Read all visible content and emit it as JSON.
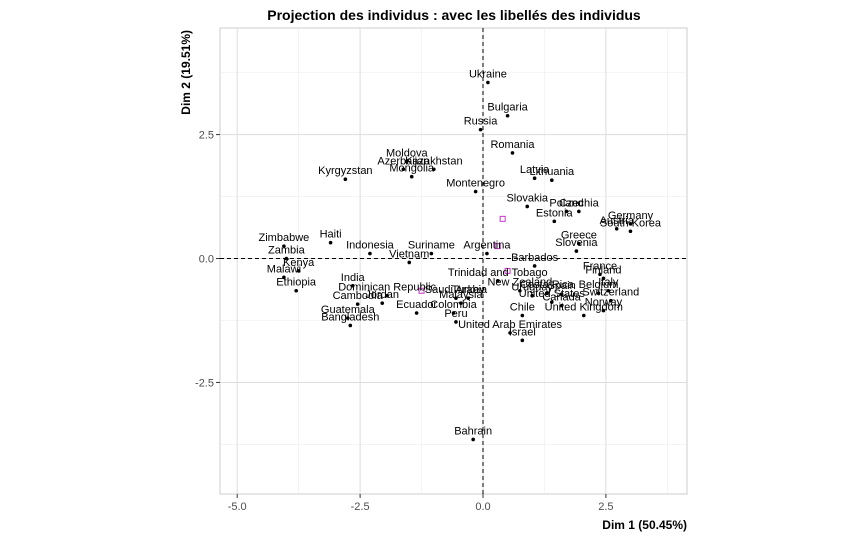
{
  "chart_data": {
    "type": "scatter",
    "title": "Projection des individus : avec les libellés des individus",
    "xlabel": "Dim 1 (50.45%)",
    "ylabel": "Dim 2 (19.51%)",
    "xlim": [
      -5.35,
      4.15
    ],
    "ylim": [
      -4.75,
      4.65
    ],
    "x_ticks": [
      -5,
      -2.5,
      0,
      2.5
    ],
    "y_ticks": [
      -2.5,
      0,
      2.5
    ],
    "x_tick_labels": [
      "-5.0",
      "-2.5",
      "0.0",
      "2.5"
    ],
    "y_tick_labels": [
      "-2.5",
      "0.0",
      "2.5"
    ],
    "grid": true,
    "reference_lines": {
      "x": 0,
      "y": 0
    },
    "point_color": "#000000",
    "supplementary_color": "#cc33cc",
    "points": [
      {
        "label": "Ukraine",
        "x": 0.1,
        "y": 3.55
      },
      {
        "label": "Bulgaria",
        "x": 0.5,
        "y": 2.88
      },
      {
        "label": "Russia",
        "x": -0.05,
        "y": 2.6
      },
      {
        "label": "Romania",
        "x": 0.6,
        "y": 2.13
      },
      {
        "label": "Moldova",
        "x": -1.55,
        "y": 1.96
      },
      {
        "label": "Kazakhstan",
        "x": -1.0,
        "y": 1.8
      },
      {
        "label": "Azerbaijan",
        "x": -1.62,
        "y": 1.8
      },
      {
        "label": "Mongolia",
        "x": -1.45,
        "y": 1.65
      },
      {
        "label": "Kyrgyzstan",
        "x": -2.8,
        "y": 1.6
      },
      {
        "label": "Latvia",
        "x": 1.05,
        "y": 1.62
      },
      {
        "label": "Lithuania",
        "x": 1.4,
        "y": 1.58
      },
      {
        "label": "Montenegro",
        "x": -0.15,
        "y": 1.35
      },
      {
        "label": "Slovakia",
        "x": 0.9,
        "y": 1.05
      },
      {
        "label": "Poland",
        "x": 1.7,
        "y": 0.95
      },
      {
        "label": "Czechia",
        "x": 1.95,
        "y": 0.95
      },
      {
        "label": "Estonia",
        "x": 1.45,
        "y": 0.75
      },
      {
        "label": "Germany",
        "x": 3.0,
        "y": 0.7
      },
      {
        "label": "Austria",
        "x": 2.72,
        "y": 0.6
      },
      {
        "label": "South Korea",
        "x": 3.0,
        "y": 0.55
      },
      {
        "label": "Greece",
        "x": 1.95,
        "y": 0.3
      },
      {
        "label": "Slovenia",
        "x": 1.9,
        "y": 0.15
      },
      {
        "label": "Zimbabwe",
        "x": -4.05,
        "y": 0.25
      },
      {
        "label": "Haiti",
        "x": -3.1,
        "y": 0.32
      },
      {
        "label": "Indonesia",
        "x": -2.3,
        "y": 0.1
      },
      {
        "label": "Suriname",
        "x": -1.05,
        "y": 0.1
      },
      {
        "label": "Argentina",
        "x": 0.08,
        "y": 0.1
      },
      {
        "label": "Zambia",
        "x": -4.0,
        "y": 0.0
      },
      {
        "label": "Vietnam",
        "x": -1.5,
        "y": -0.08
      },
      {
        "label": "Kenya",
        "x": -3.75,
        "y": -0.25
      },
      {
        "label": "Malawi",
        "x": -4.05,
        "y": -0.38
      },
      {
        "label": "Ethiopia",
        "x": -3.8,
        "y": -0.65
      },
      {
        "label": "Barbados",
        "x": 1.05,
        "y": -0.15
      },
      {
        "label": "France",
        "x": 2.38,
        "y": -0.32
      },
      {
        "label": "Finland",
        "x": 2.45,
        "y": -0.4
      },
      {
        "label": "Trinidad and Tobago",
        "x": 0.3,
        "y": -0.45
      },
      {
        "label": "New Zealand",
        "x": 0.75,
        "y": -0.65
      },
      {
        "label": "Uruguay",
        "x": 1.0,
        "y": -0.75
      },
      {
        "label": "Costa Rica",
        "x": 1.3,
        "y": -0.7
      },
      {
        "label": "Spain",
        "x": 1.6,
        "y": -0.72
      },
      {
        "label": "Belgium",
        "x": 2.35,
        "y": -0.7
      },
      {
        "label": "Italy",
        "x": 2.55,
        "y": -0.65
      },
      {
        "label": "United States",
        "x": 1.4,
        "y": -0.88
      },
      {
        "label": "Switzerland",
        "x": 2.6,
        "y": -0.85
      },
      {
        "label": "Canada",
        "x": 1.6,
        "y": -0.95
      },
      {
        "label": "Norway",
        "x": 2.45,
        "y": -1.05
      },
      {
        "label": "United Kingdom",
        "x": 2.05,
        "y": -1.15
      },
      {
        "label": "India",
        "x": -2.65,
        "y": -0.55
      },
      {
        "label": "Dominican Republic",
        "x": -1.95,
        "y": -0.75
      },
      {
        "label": "Jordan",
        "x": -2.05,
        "y": -0.9
      },
      {
        "label": "Cambodia",
        "x": -2.55,
        "y": -0.92
      },
      {
        "label": "Saudi Arabia",
        "x": -0.55,
        "y": -0.8
      },
      {
        "label": "Turkey",
        "x": -0.3,
        "y": -0.8
      },
      {
        "label": "Malaysia",
        "x": -0.45,
        "y": -0.9
      },
      {
        "label": "Ecuador",
        "x": -1.35,
        "y": -1.1
      },
      {
        "label": "Colombia",
        "x": -0.6,
        "y": -1.1
      },
      {
        "label": "Guatemala",
        "x": -2.75,
        "y": -1.2
      },
      {
        "label": "Bangladesh",
        "x": -2.7,
        "y": -1.35
      },
      {
        "label": "Peru",
        "x": -0.55,
        "y": -1.28
      },
      {
        "label": "Chile",
        "x": 0.8,
        "y": -1.15
      },
      {
        "label": "United Arab Emirates",
        "x": 0.55,
        "y": -1.5
      },
      {
        "label": "Israel",
        "x": 0.8,
        "y": -1.65
      },
      {
        "label": "Bahrain",
        "x": -0.2,
        "y": -3.65
      }
    ],
    "supplementary_points": [
      {
        "x": 0.4,
        "y": 0.8
      },
      {
        "x": 0.3,
        "y": 0.25
      },
      {
        "x": 0.5,
        "y": -0.25
      },
      {
        "x": -1.25,
        "y": -0.65
      }
    ]
  }
}
